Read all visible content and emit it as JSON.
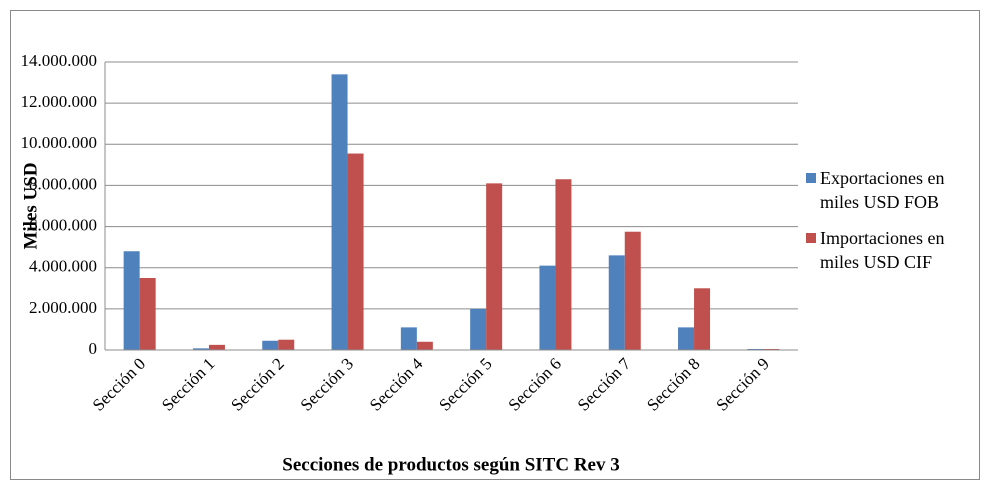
{
  "chart_data": {
    "type": "bar",
    "y_label": "Miles USD",
    "x_label": "Secciones de productos  según SITC Rev 3",
    "categories": [
      "Sección 0",
      "Sección 1",
      "Sección 2",
      "Sección 3",
      "Sección 4",
      "Sección 5",
      "Sección 6",
      "Sección 7",
      "Sección 8",
      "Sección 9"
    ],
    "series": [
      {
        "name": "Exportaciones en miles USD FOB",
        "color": "#4f81bd",
        "values": [
          4800000,
          80000,
          450000,
          13400000,
          1100000,
          2000000,
          4100000,
          4600000,
          1100000,
          50000
        ]
      },
      {
        "name": "Importaciones en miles USD CIF",
        "color": "#c0504d",
        "values": [
          3500000,
          250000,
          500000,
          9550000,
          400000,
          8100000,
          8300000,
          5750000,
          3000000,
          50000
        ]
      }
    ],
    "ylim": [
      0,
      14000000
    ],
    "yticks": [
      0,
      {
        "value": 2000000,
        "label": "2.000.000"
      },
      {
        "value": 4000000,
        "label": "4.000.000"
      },
      {
        "value": 6000000,
        "label": "6.000.000"
      },
      {
        "value": 8000000,
        "label": "8.000.000"
      },
      {
        "value": 10000000,
        "label": "10.000.000"
      },
      {
        "value": 12000000,
        "label": "12.000.000"
      },
      {
        "value": 14000000,
        "label": "14.000.000"
      }
    ],
    "grid": true,
    "legend": "right"
  }
}
